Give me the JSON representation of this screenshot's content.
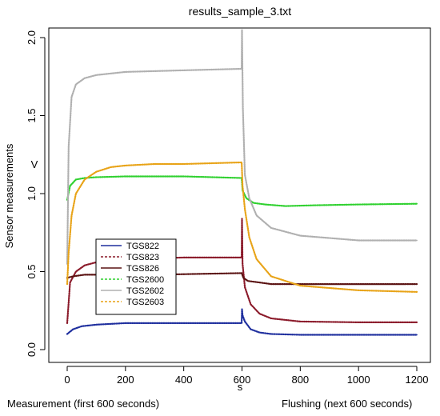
{
  "chart_data": {
    "type": "line",
    "title": "results_sample_3.txt",
    "xlabel": "s",
    "ylabel": "Sensor measurements",
    "y_unit": "V",
    "xlim": [
      0,
      1200
    ],
    "ylim": [
      0,
      2.0
    ],
    "x_ticks": [
      0,
      200,
      400,
      600,
      800,
      1000,
      1200
    ],
    "y_ticks": [
      "0.0",
      "0.5",
      "1.0",
      "1.5",
      "2.0"
    ],
    "grid": false,
    "legend": "lower-left",
    "series": [
      {
        "name": "TGS822",
        "color": "#1f2f9e",
        "dash": "solid",
        "x": [
          0,
          20,
          50,
          100,
          200,
          400,
          599,
          600,
          602,
          610,
          630,
          660,
          700,
          800,
          1000,
          1200
        ],
        "y": [
          0.1,
          0.13,
          0.15,
          0.16,
          0.17,
          0.17,
          0.17,
          0.26,
          0.22,
          0.18,
          0.13,
          0.11,
          0.1,
          0.095,
          0.095,
          0.095
        ]
      },
      {
        "name": "TGS823",
        "color": "#8b1a2a",
        "dash": "dashed",
        "x": [
          0,
          10,
          30,
          60,
          100,
          200,
          400,
          599,
          600,
          602,
          610,
          630,
          660,
          700,
          800,
          1000,
          1200
        ],
        "y": [
          0.17,
          0.43,
          0.5,
          0.54,
          0.56,
          0.58,
          0.59,
          0.59,
          0.84,
          0.55,
          0.4,
          0.29,
          0.23,
          0.2,
          0.18,
          0.175,
          0.175
        ]
      },
      {
        "name": "TGS826",
        "color": "#5a1212",
        "dash": "solid",
        "x": [
          0,
          20,
          60,
          150,
          300,
          599,
          605,
          620,
          660,
          700,
          800,
          1000,
          1200
        ],
        "y": [
          0.46,
          0.47,
          0.48,
          0.48,
          0.48,
          0.49,
          0.46,
          0.44,
          0.43,
          0.42,
          0.42,
          0.42,
          0.42
        ]
      },
      {
        "name": "TGS2600",
        "color": "#2fd12f",
        "dash": "dashed",
        "x": [
          0,
          10,
          30,
          60,
          100,
          200,
          400,
          599,
          602,
          615,
          640,
          680,
          750,
          850,
          1000,
          1200
        ],
        "y": [
          0.96,
          1.05,
          1.09,
          1.1,
          1.105,
          1.11,
          1.11,
          1.1,
          1.02,
          0.97,
          0.94,
          0.93,
          0.92,
          0.925,
          0.93,
          0.935
        ]
      },
      {
        "name": "TGS2602",
        "color": "#b0b0b0",
        "dash": "solid",
        "x": [
          0,
          5,
          15,
          30,
          60,
          100,
          200,
          400,
          599,
          600,
          603,
          610,
          625,
          650,
          700,
          800,
          1000,
          1200
        ],
        "y": [
          0.55,
          1.3,
          1.62,
          1.7,
          1.74,
          1.76,
          1.78,
          1.79,
          1.8,
          2.05,
          1.55,
          1.12,
          0.97,
          0.86,
          0.78,
          0.73,
          0.7,
          0.7
        ]
      },
      {
        "name": "TGS2603",
        "color": "#e8a317",
        "dash": "dashed",
        "x": [
          0,
          5,
          15,
          30,
          60,
          100,
          150,
          200,
          300,
          400,
          599,
          602,
          610,
          625,
          650,
          700,
          800,
          1000,
          1200
        ],
        "y": [
          0.42,
          0.62,
          0.86,
          1.0,
          1.09,
          1.14,
          1.17,
          1.18,
          1.19,
          1.19,
          1.2,
          1.05,
          0.9,
          0.72,
          0.58,
          0.47,
          0.41,
          0.38,
          0.37
        ]
      }
    ]
  },
  "notes": {
    "left": "Measurement (first 600 seconds)",
    "right": "Flushing (next 600 seconds)"
  }
}
